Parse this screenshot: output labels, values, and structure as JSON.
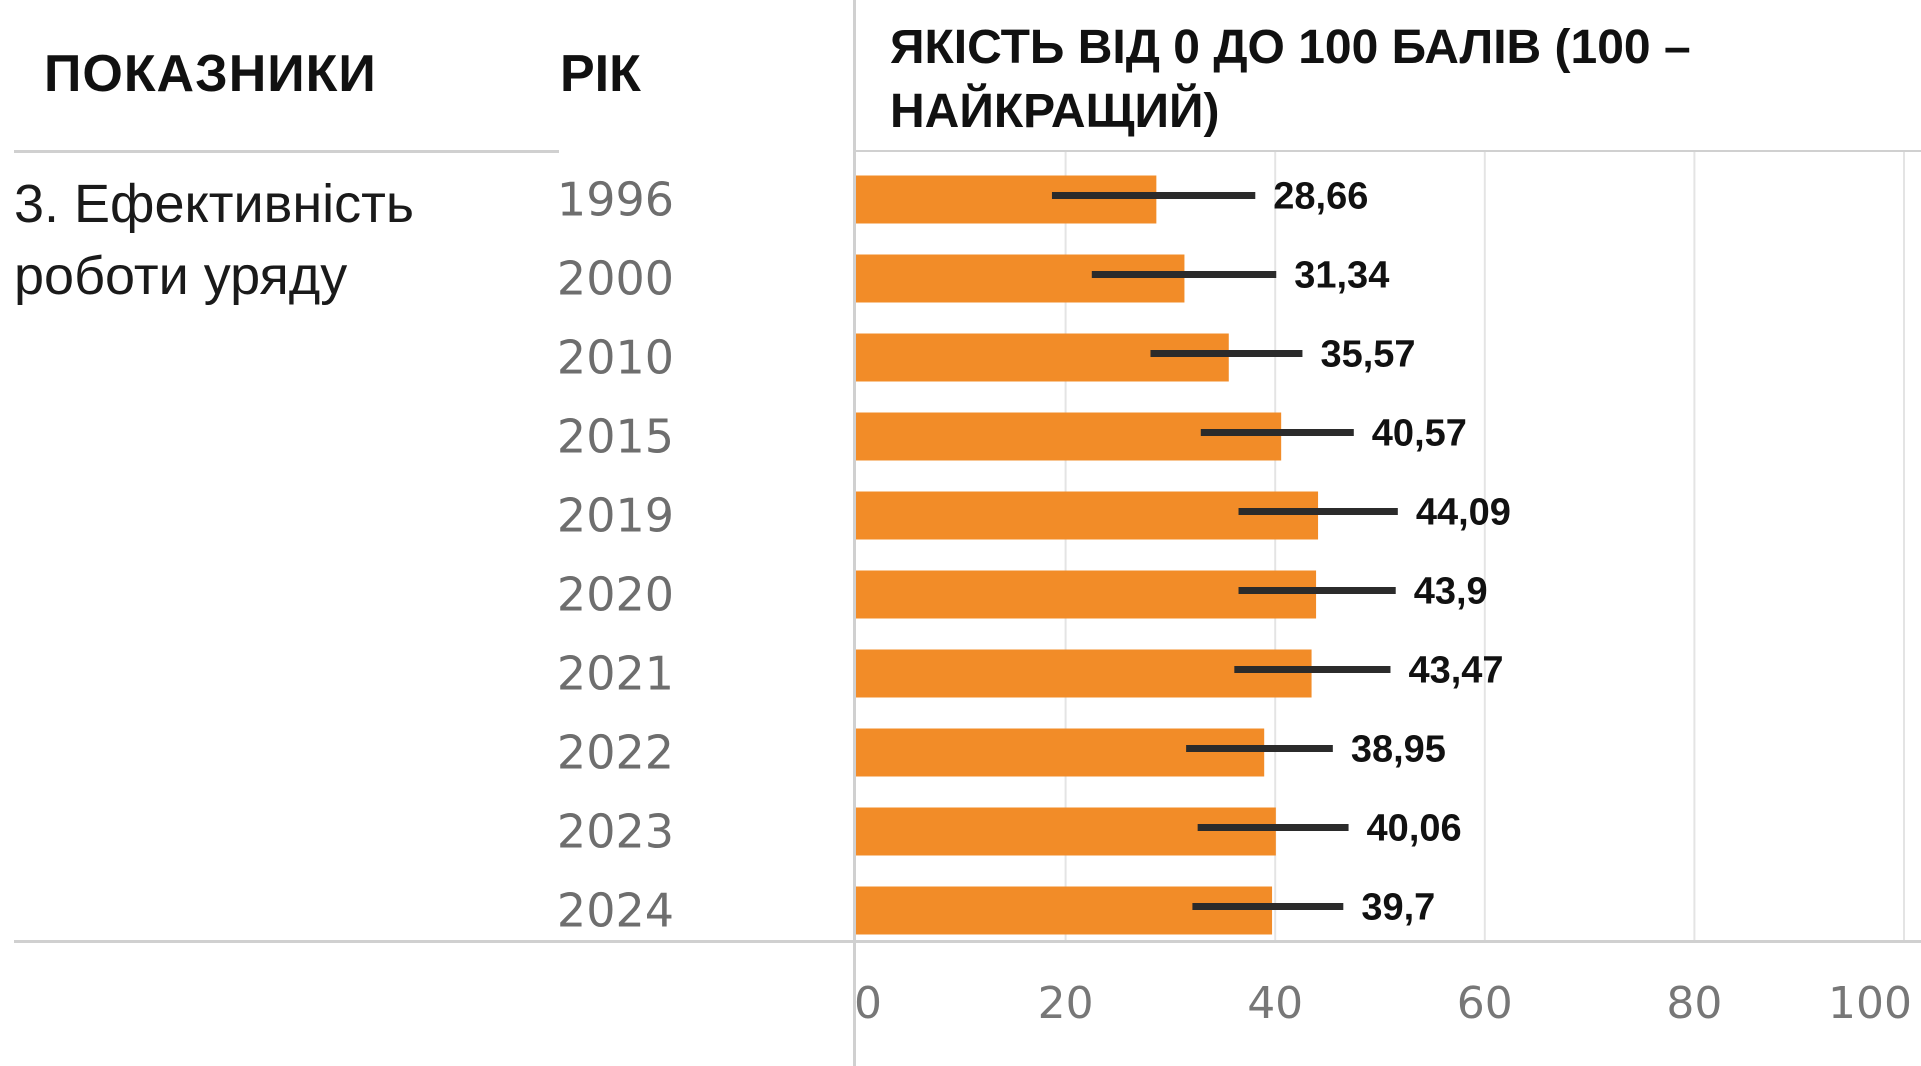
{
  "header": {
    "indicator": "ПОКАЗНИКИ",
    "year": "РІК",
    "quality_line1": "ЯКІСТЬ ВІД 0 ДО 100 БАЛІВ (100 –",
    "quality_line2": "НАЙКРАЩИЙ)"
  },
  "indicator": {
    "line1": "3. Ефективність",
    "line2": "роботи уряду"
  },
  "colors": {
    "bar": "#F28C28",
    "error_bar": "#2b2b2b",
    "grid": "#e4e4e4"
  },
  "chart_data": {
    "type": "bar",
    "orientation": "horizontal",
    "categories": [
      "1996",
      "2000",
      "2010",
      "2015",
      "2019",
      "2020",
      "2021",
      "2022",
      "2023",
      "2024"
    ],
    "values": [
      28.66,
      31.34,
      35.57,
      40.57,
      44.09,
      43.9,
      43.47,
      38.95,
      40.06,
      39.7
    ],
    "value_labels": [
      "28,66",
      "31,34",
      "35,57",
      "40,57",
      "44,09",
      "43,9",
      "43,47",
      "38,95",
      "40,06",
      "39,7"
    ],
    "error_low": [
      18.7,
      22.5,
      28.1,
      32.9,
      36.5,
      36.5,
      36.1,
      31.5,
      32.6,
      32.1
    ],
    "error_high": [
      38.1,
      40.1,
      42.6,
      47.5,
      51.7,
      51.5,
      51.0,
      45.5,
      47.0,
      46.5
    ],
    "xlim": [
      0,
      100
    ],
    "xticks": [
      "0",
      "20",
      "40",
      "60",
      "80",
      "100"
    ],
    "grid": true,
    "legend": "none"
  }
}
